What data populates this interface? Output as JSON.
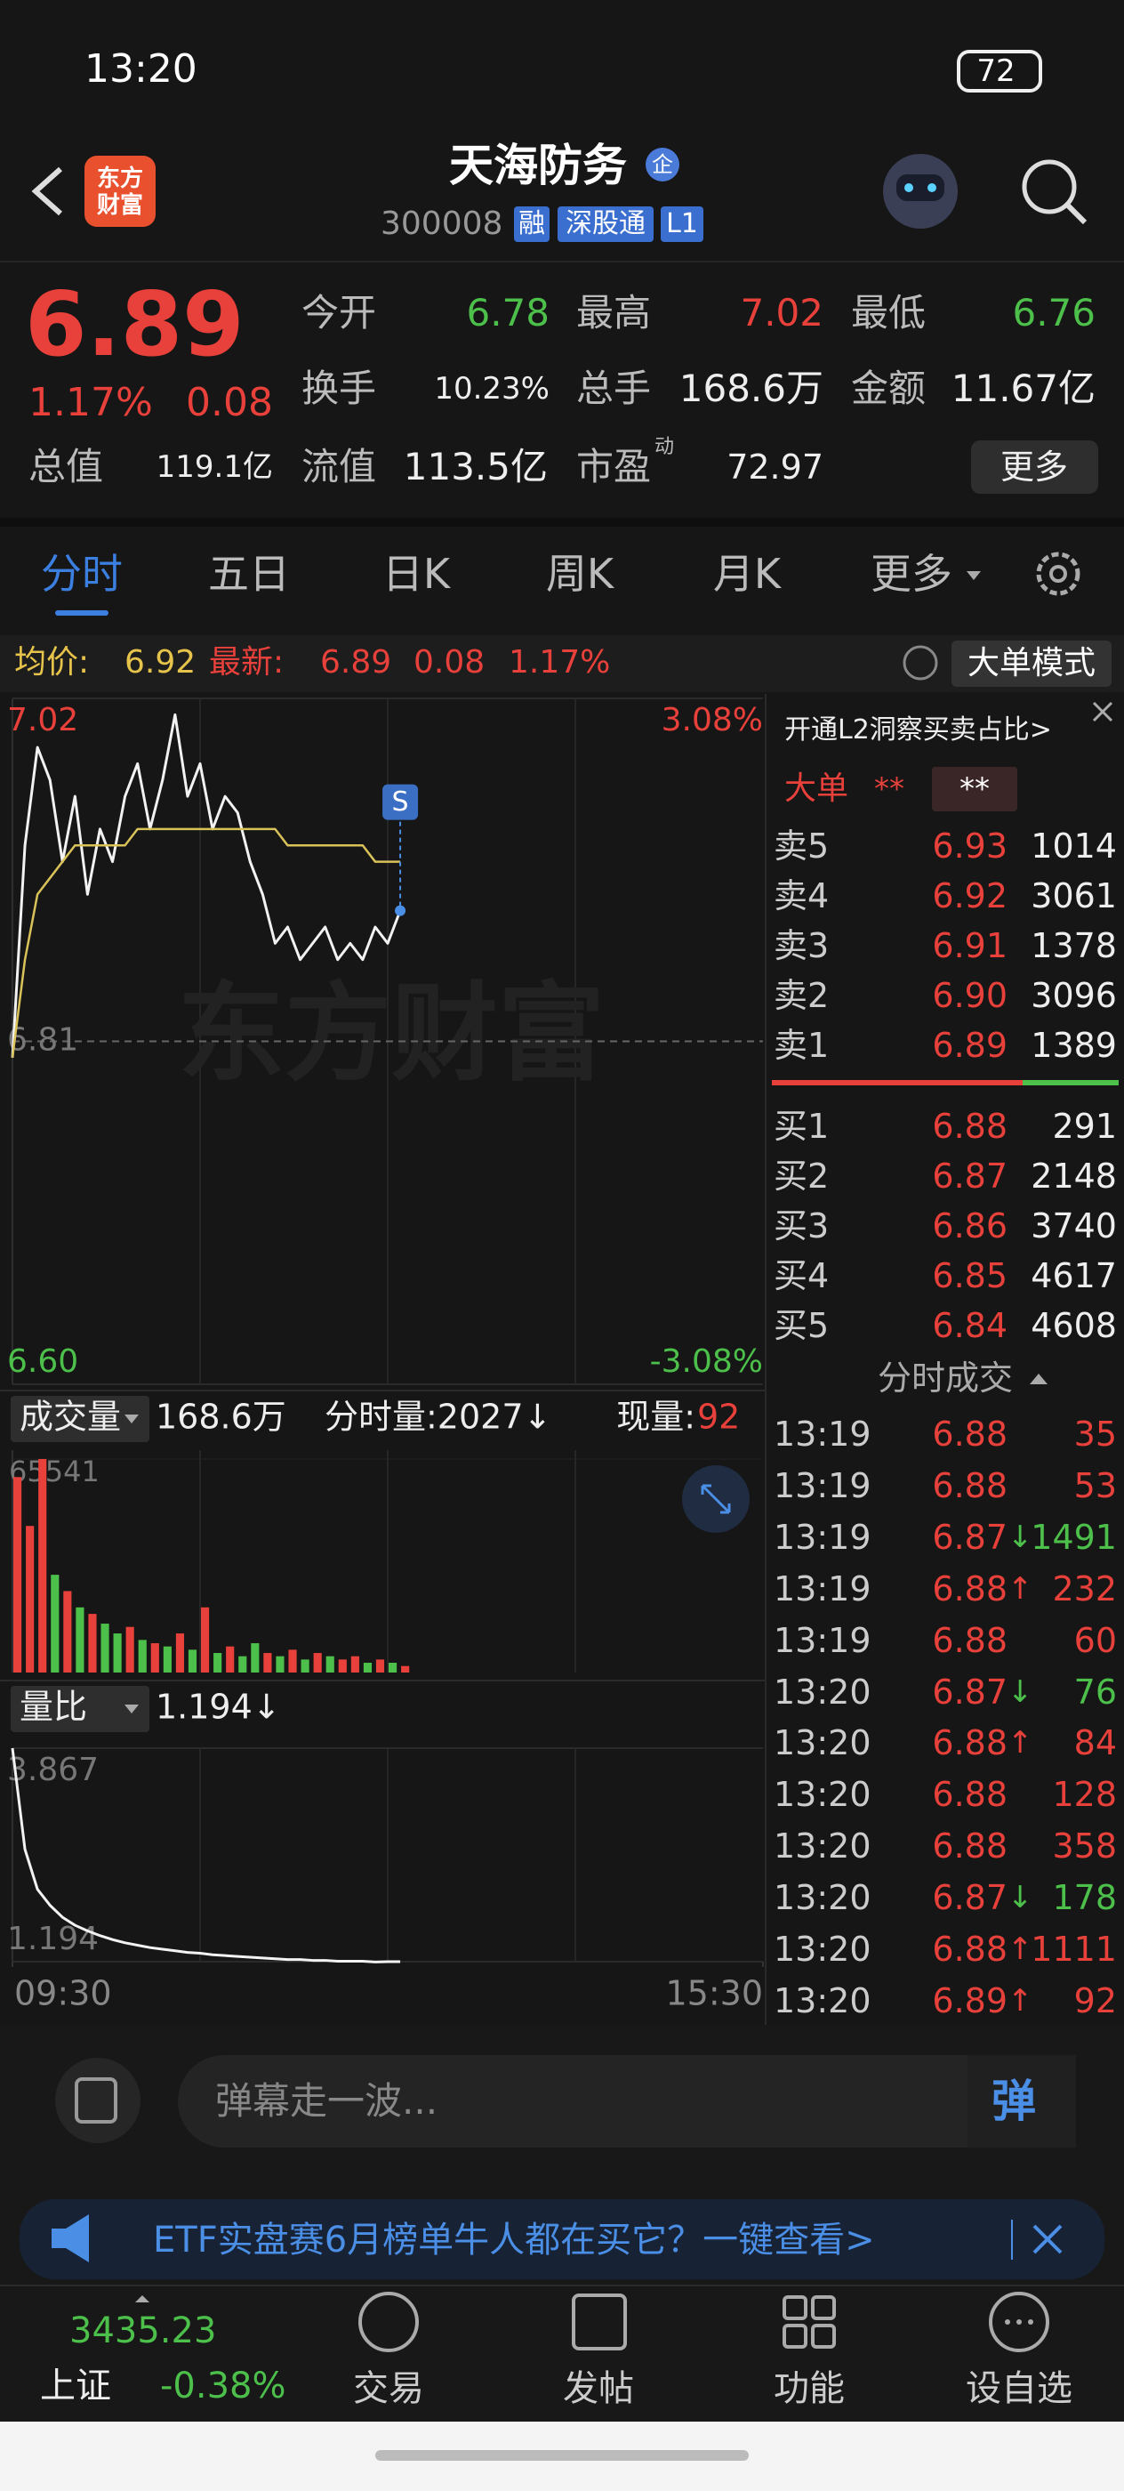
{
  "status_bar": {
    "time": "13:20",
    "battery": "72"
  },
  "header": {
    "logo": "东方财富",
    "title": "天海防务",
    "badge": "企",
    "code": "300008",
    "tags": [
      "融",
      "深股通",
      "L1"
    ]
  },
  "quote": {
    "price": "6.89",
    "change_pct": "1.17%",
    "change": "0.08",
    "fields": [
      {
        "label": "今开",
        "value": "6.78"
      },
      {
        "label": "最高",
        "value": "7.02"
      },
      {
        "label": "最低",
        "value": "6.76"
      },
      {
        "label": "换手",
        "value": "10.23%"
      },
      {
        "label": "总手",
        "value": "168.6万"
      },
      {
        "label": "金额",
        "value": "11.67亿"
      },
      {
        "label": "总值",
        "value": "119.1亿"
      },
      {
        "label": "流值",
        "value": "113.5亿"
      },
      {
        "label": "市盈",
        "superscript": "动",
        "value": "72.97"
      }
    ],
    "more": "更多"
  },
  "tabs": [
    "分时",
    "五日",
    "日K",
    "周K",
    "月K",
    "更多"
  ],
  "info_bar": {
    "avg_label": "均价:",
    "avg": "6.92",
    "latest_label": "最新:",
    "latest": "6.89",
    "change": "0.08",
    "change_pct": "1.17%",
    "mode": "大单模式"
  },
  "chart_data": [
    {
      "type": "line",
      "watermark": "东方财富",
      "marker": "S",
      "x": [
        0,
        4,
        8,
        12,
        16,
        20,
        24,
        28,
        32,
        36,
        40,
        44,
        48,
        52,
        56,
        60,
        64,
        68,
        72,
        76,
        80,
        84,
        88,
        92,
        96,
        100,
        104,
        108,
        112,
        116,
        120,
        124
      ],
      "xlim": [
        0,
        240
      ],
      "series": [
        {
          "color": "#f2f2f2",
          "values": [
            6.8,
            6.93,
            6.99,
            6.97,
            6.92,
            6.96,
            6.9,
            6.94,
            6.92,
            6.96,
            6.98,
            6.94,
            6.97,
            7.01,
            6.96,
            6.98,
            6.94,
            6.96,
            6.95,
            6.92,
            6.9,
            6.87,
            6.88,
            6.86,
            6.87,
            6.88,
            6.86,
            6.87,
            6.86,
            6.88,
            6.87,
            6.89
          ]
        },
        {
          "color": "#d9c25a",
          "values": [
            6.8,
            6.86,
            6.9,
            6.91,
            6.92,
            6.93,
            6.93,
            6.93,
            6.93,
            6.93,
            6.94,
            6.94,
            6.94,
            6.94,
            6.94,
            6.94,
            6.94,
            6.94,
            6.94,
            6.94,
            6.94,
            6.94,
            6.93,
            6.93,
            6.93,
            6.93,
            6.93,
            6.93,
            6.93,
            6.92,
            6.92,
            6.92
          ]
        }
      ],
      "ylim": [
        6.6,
        7.02
      ],
      "yticks": [
        7.02,
        6.81,
        {
          "value": 6.6,
          "label": "6.60"
        }
      ],
      "y2lim": [
        -3.08,
        3.08
      ],
      "y2ticks": [
        {
          "value": 3.08,
          "label": "3.08%"
        },
        {
          "value": -3.08,
          "label": "-3.08%"
        }
      ]
    },
    {
      "type": "bar",
      "indicator": "成交量",
      "total": "168.6万",
      "minute_volume": "分时量:2027↓",
      "current_label": "现量:",
      "current": "92",
      "x": [
        0,
        4,
        8,
        12,
        16,
        20,
        24,
        28,
        32,
        36,
        40,
        44,
        48,
        52,
        56,
        60,
        64,
        68,
        72,
        76,
        80,
        84,
        88,
        92,
        96,
        100,
        104,
        108,
        112,
        116,
        120,
        124
      ],
      "xlim": [
        0,
        240
      ],
      "values": [
        60000,
        45000,
        65541,
        30000,
        25000,
        20000,
        18000,
        15000,
        12000,
        14000,
        10000,
        9000,
        8000,
        12000,
        7000,
        20000,
        6000,
        8000,
        5000,
        9000,
        6000,
        5000,
        7000,
        4000,
        6000,
        5000,
        4000,
        5000,
        3000,
        4000,
        3000,
        2000
      ],
      "colors": [
        "#e8403a",
        "#e8403a",
        "#e8403a",
        "#4cc04a",
        "#e8403a",
        "#4cc04a",
        "#e8403a",
        "#4cc04a",
        "#4cc04a",
        "#e8403a",
        "#4cc04a",
        "#e8403a",
        "#4cc04a",
        "#e8403a",
        "#4cc04a",
        "#e8403a",
        "#4cc04a",
        "#e8403a",
        "#4cc04a",
        "#4cc04a",
        "#e8403a",
        "#4cc04a",
        "#e8403a",
        "#4cc04a",
        "#e8403a",
        "#4cc04a",
        "#e8403a",
        "#e8403a",
        "#4cc04a",
        "#e8403a",
        "#4cc04a",
        "#e8403a"
      ],
      "ylim": [
        0,
        65541
      ],
      "yticks": [
        65541
      ]
    },
    {
      "type": "line",
      "indicator": "量比",
      "current": "1.194↓",
      "x": [
        0,
        4,
        8,
        12,
        16,
        20,
        24,
        28,
        32,
        36,
        40,
        44,
        48,
        52,
        56,
        60,
        64,
        68,
        72,
        76,
        80,
        84,
        88,
        92,
        96,
        100,
        104,
        108,
        112,
        116,
        120,
        124
      ],
      "xlim": [
        0,
        240
      ],
      "xticks": [
        {
          "value": 0,
          "label": "09:30"
        },
        {
          "value": 240,
          "label": "15:30"
        }
      ],
      "series": [
        {
          "color": "#f2f2f2",
          "values": [
            3.867,
            2.6,
            2.1,
            1.9,
            1.75,
            1.65,
            1.58,
            1.52,
            1.47,
            1.43,
            1.4,
            1.37,
            1.35,
            1.33,
            1.31,
            1.3,
            1.28,
            1.27,
            1.26,
            1.25,
            1.24,
            1.23,
            1.22,
            1.22,
            1.21,
            1.21,
            1.2,
            1.2,
            1.2,
            1.19,
            1.194,
            1.194
          ]
        }
      ],
      "ylim": [
        1.194,
        3.867
      ],
      "yticks": [
        3.867,
        1.194
      ]
    }
  ],
  "order_book": {
    "promo": "开通L2洞察买卖占比>",
    "big_order": "大单",
    "big_order_values": [
      "**",
      "**"
    ],
    "asks": [
      [
        "卖5",
        "6.93",
        "1014"
      ],
      [
        "卖4",
        "6.92",
        "3061"
      ],
      [
        "卖3",
        "6.91",
        "1378"
      ],
      [
        "卖2",
        "6.90",
        "3096"
      ],
      [
        "卖1",
        "6.89",
        "1389"
      ]
    ],
    "bids": [
      [
        "买1",
        "6.88",
        "291"
      ],
      [
        "买2",
        "6.87",
        "2148"
      ],
      [
        "买3",
        "6.86",
        "3740"
      ],
      [
        "买4",
        "6.85",
        "4617"
      ],
      [
        "买5",
        "6.84",
        "4608"
      ]
    ]
  },
  "trades": {
    "title": "分时成交",
    "rows": [
      [
        "13:19",
        "6.88",
        "35"
      ],
      [
        "13:19",
        "6.88",
        "53"
      ],
      [
        "13:19",
        "6.87",
        "1491",
        "↓"
      ],
      [
        "13:19",
        "6.88",
        "232",
        "↑"
      ],
      [
        "13:19",
        "6.88",
        "60"
      ],
      [
        "13:20",
        "6.87",
        "76",
        "↓"
      ],
      [
        "13:20",
        "6.88",
        "84",
        "↑"
      ],
      [
        "13:20",
        "6.88",
        "128"
      ],
      [
        "13:20",
        "6.88",
        "358"
      ],
      [
        "13:20",
        "6.87",
        "178",
        "↓"
      ],
      [
        "13:20",
        "6.88",
        "1111",
        "↑"
      ],
      [
        "13:20",
        "6.89",
        "92",
        "↑"
      ]
    ]
  },
  "comment": {
    "placeholder": "弹幕走一波...",
    "button": "弹"
  },
  "banner": {
    "text": "ETF实盘赛6月榜单牛人都在买它？一键查看>"
  },
  "bottom_nav": {
    "index_value": "3435.23",
    "index_name": "上证",
    "index_change": "-0.38%",
    "items": [
      "交易",
      "发帖",
      "功能",
      "设自选"
    ]
  }
}
